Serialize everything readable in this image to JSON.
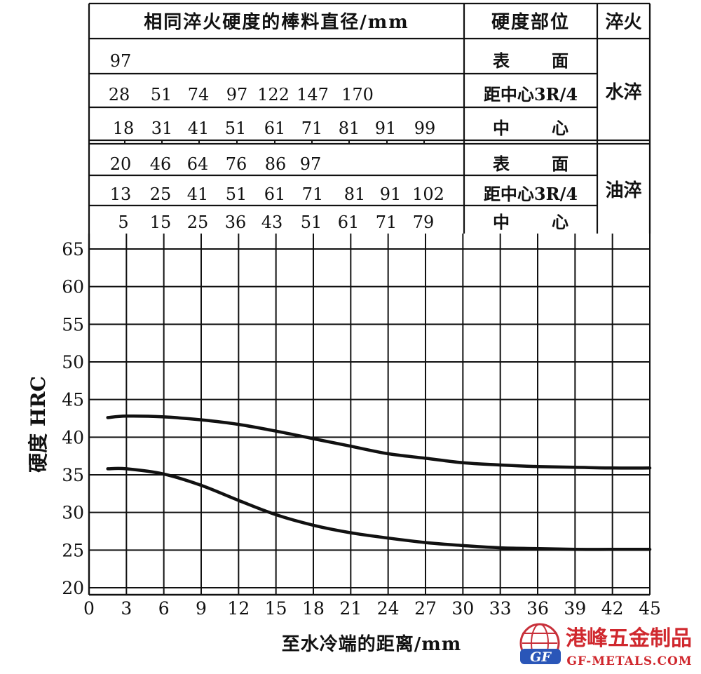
{
  "header_table": {
    "col1_header": "相同淬火硬度的棒料直径/mm",
    "col2_header": "硬度部位",
    "col3_header": "淬火",
    "groups": [
      {
        "quench": "水淬",
        "rows": [
          {
            "position": "表面",
            "diameters": [
              "97"
            ]
          },
          {
            "position": "距中心3R/4",
            "diameters": [
              "28",
              "51",
              "74",
              "97",
              "122",
              "147",
              "170"
            ]
          },
          {
            "position": "中心",
            "diameters": [
              "18",
              "31",
              "41",
              "51",
              "61",
              "71",
              "81",
              "91",
              "99"
            ]
          }
        ]
      },
      {
        "quench": "油淬",
        "rows": [
          {
            "position": "表面",
            "diameters": [
              "20",
              "46",
              "64",
              "76",
              "86",
              "97"
            ]
          },
          {
            "position": "距中心3R/4",
            "diameters": [
              "13",
              "25",
              "41",
              "51",
              "61",
              "71",
              "81",
              "91",
              "102"
            ]
          },
          {
            "position": "中心",
            "diameters": [
              "5",
              "15",
              "25",
              "36",
              "43",
              "51",
              "61",
              "71",
              "79"
            ]
          }
        ]
      }
    ]
  },
  "chart_data": {
    "type": "line",
    "title": "",
    "xlabel": "至水冷端的距离/mm",
    "ylabel": "硬度 HRC",
    "xlim": [
      0,
      45
    ],
    "ylim": [
      19,
      66
    ],
    "xticks": [
      "0",
      "3",
      "6",
      "9",
      "12",
      "15",
      "18",
      "21",
      "24",
      "27",
      "30",
      "33",
      "36",
      "39",
      "42",
      "45"
    ],
    "yticks": [
      "20",
      "25",
      "30",
      "35",
      "40",
      "45",
      "50",
      "55",
      "60",
      "65"
    ],
    "grid": true,
    "series": [
      {
        "x": [
          1.5,
          3,
          6,
          9,
          12,
          15,
          18,
          21,
          24,
          27,
          30,
          33,
          36,
          39,
          42,
          45
        ],
        "y": [
          42.6,
          42.8,
          42.7,
          42.3,
          41.7,
          40.8,
          39.8,
          38.8,
          37.8,
          37.2,
          36.6,
          36.3,
          36.1,
          36.0,
          35.9,
          35.9
        ]
      },
      {
        "x": [
          1.5,
          3,
          6,
          9,
          12,
          15,
          18,
          21,
          24,
          27,
          30,
          33,
          36,
          39,
          42,
          45
        ],
        "y": [
          35.8,
          35.8,
          35.1,
          33.6,
          31.6,
          29.7,
          28.3,
          27.3,
          26.6,
          26.0,
          25.6,
          25.3,
          25.2,
          25.1,
          25.1,
          25.1
        ]
      }
    ]
  },
  "watermark": {
    "logo_letters": "GF",
    "company": "港峰五金制品",
    "url": "GF-METALS.COM",
    "colors": {
      "globe": "#c8303a",
      "banner": "#2a56b8",
      "text": "#d0282e"
    }
  }
}
